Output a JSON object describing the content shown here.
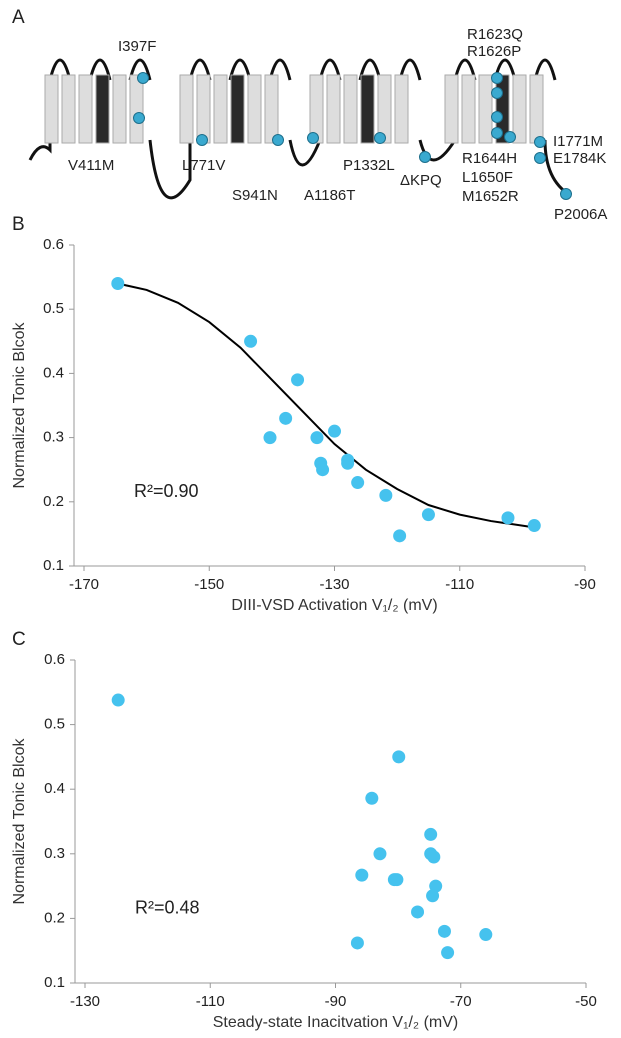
{
  "diagram": {
    "panel_label": "A",
    "labels": [
      "I397F",
      "V411M",
      "L771V",
      "S941N",
      "A1186T",
      "P1332L",
      "ΔKPQ",
      "R1623Q",
      "R1626P",
      "R1644H",
      "L1650F",
      "M1652R",
      "I1771M",
      "E1784K",
      "P2006A"
    ]
  },
  "chart_data": [
    {
      "type": "scatter",
      "panel_label": "B",
      "y_label": "Normalized Tonic Blcok",
      "x_label": "DIII-VSD Activation V₁/₂ (mV)",
      "annotation": "R²=0.90",
      "xlim": [
        -170,
        -90
      ],
      "xticks": [
        -170,
        -150,
        -130,
        -110,
        -90
      ],
      "ylim": [
        0.1,
        0.6
      ],
      "yticks": [
        0.1,
        0.2,
        0.3,
        0.4,
        0.5,
        0.6
      ],
      "series": [
        {
          "color": "#45c2ee",
          "x": [
            -164.6,
            -143.4,
            -135.9,
            -137.8,
            -140.3,
            -132.8,
            -130,
            -132.2,
            -131.9,
            -127.9,
            -127.9,
            -126.3,
            -121.8,
            -119.6,
            -115,
            -102.3,
            -98.1
          ],
          "values": [
            0.54,
            0.45,
            0.39,
            0.33,
            0.3,
            0.3,
            0.31,
            0.26,
            0.25,
            0.265,
            0.26,
            0.23,
            0.21,
            0.147,
            0.18,
            0.175,
            0.163
          ]
        }
      ],
      "fit": {
        "color": "#000000",
        "x": [
          -164.6,
          -160,
          -155,
          -150,
          -145,
          -140,
          -135,
          -130,
          -125,
          -120,
          -115,
          -110,
          -105,
          -98
        ],
        "values": [
          0.54,
          0.53,
          0.51,
          0.48,
          0.44,
          0.39,
          0.34,
          0.29,
          0.25,
          0.22,
          0.195,
          0.18,
          0.17,
          0.16
        ]
      }
    },
    {
      "type": "scatter",
      "panel_label": "C",
      "y_label": "Normalized Tonic Blcok",
      "x_label": "Steady-state Inacitvation V₁/₂ (mV)",
      "annotation": "R²=0.48",
      "xlim": [
        -130,
        -50
      ],
      "xticks": [
        -130,
        -110,
        -90,
        -70,
        -50
      ],
      "ylim": [
        0.1,
        0.6
      ],
      "yticks": [
        0.1,
        0.2,
        0.3,
        0.4,
        0.5,
        0.6
      ],
      "series": [
        {
          "color": "#45c2ee",
          "x": [
            -124.7,
            -79.9,
            -84.2,
            -74.8,
            -82.9,
            -74.8,
            -74.3,
            -85.8,
            -80.6,
            -80.2,
            -74,
            -74.5,
            -76.9,
            -72.6,
            -72.1,
            -66,
            -86.5
          ],
          "values": [
            0.538,
            0.45,
            0.386,
            0.33,
            0.3,
            0.3,
            0.295,
            0.267,
            0.26,
            0.26,
            0.25,
            0.235,
            0.21,
            0.18,
            0.147,
            0.175,
            0.162
          ]
        }
      ]
    }
  ]
}
